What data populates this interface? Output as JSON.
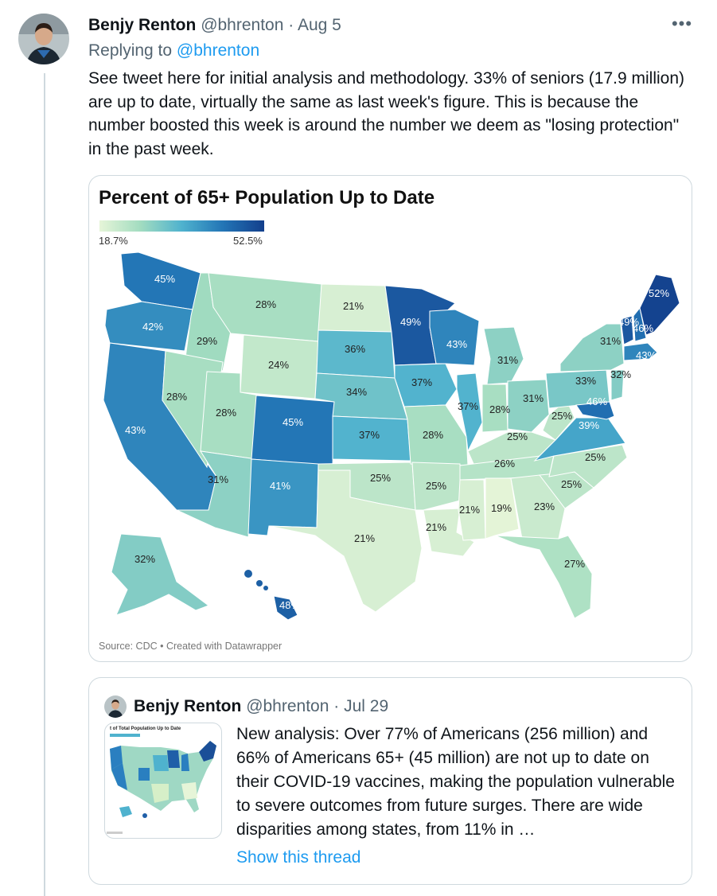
{
  "tweet": {
    "author_name": "Benjy Renton",
    "handle": "@bhrenton",
    "separator": "·",
    "date": "Aug 5",
    "more_icon": "more-horizontal-icon",
    "replying_prefix": "Replying to",
    "replying_handle": "@bhrenton",
    "text": "See tweet here for initial analysis and methodology. 33% of seniors (17.9 million) are up to date, virtually the same as last week's figure. This is because the number boosted this week is around the number we deem as \"losing protection\" in the past week."
  },
  "chart": {
    "title": "Percent of 65+ Population Up to Date",
    "legend_min": "18.7%",
    "legend_max": "52.5%",
    "source": "Source: CDC • Created with Datawrapper"
  },
  "chart_data": {
    "type": "table",
    "title": "Percent of 65+ Population Up to Date",
    "scale_min": 18.7,
    "scale_max": 52.5,
    "colors": {
      "low": "#e6f5d8",
      "high": "#133f8c"
    },
    "rows": [
      {
        "state": "WA",
        "value": 45
      },
      {
        "state": "OR",
        "value": 42
      },
      {
        "state": "CA",
        "value": 43
      },
      {
        "state": "ID",
        "value": 29
      },
      {
        "state": "NV",
        "value": 28
      },
      {
        "state": "MT",
        "value": 28
      },
      {
        "state": "WY",
        "value": 24
      },
      {
        "state": "UT",
        "value": 28
      },
      {
        "state": "AZ",
        "value": 31
      },
      {
        "state": "CO",
        "value": 45
      },
      {
        "state": "NM",
        "value": 41
      },
      {
        "state": "ND",
        "value": 21
      },
      {
        "state": "SD",
        "value": 36
      },
      {
        "state": "NE",
        "value": 34
      },
      {
        "state": "KS",
        "value": 37
      },
      {
        "state": "OK",
        "value": 25
      },
      {
        "state": "TX",
        "value": 21
      },
      {
        "state": "MN",
        "value": 49
      },
      {
        "state": "IA",
        "value": 37
      },
      {
        "state": "MO",
        "value": 28
      },
      {
        "state": "AR",
        "value": 25
      },
      {
        "state": "LA",
        "value": 21
      },
      {
        "state": "WI",
        "value": 43
      },
      {
        "state": "IL",
        "value": 37
      },
      {
        "state": "MI",
        "value": 31
      },
      {
        "state": "IN",
        "value": 28
      },
      {
        "state": "OH",
        "value": 31
      },
      {
        "state": "KY",
        "value": 25
      },
      {
        "state": "TN",
        "value": 26
      },
      {
        "state": "MS",
        "value": 21
      },
      {
        "state": "AL",
        "value": 19
      },
      {
        "state": "GA",
        "value": 23
      },
      {
        "state": "FL",
        "value": 27
      },
      {
        "state": "SC",
        "value": 25
      },
      {
        "state": "NC",
        "value": 25
      },
      {
        "state": "VA",
        "value": 39
      },
      {
        "state": "WV",
        "value": 25
      },
      {
        "state": "PA",
        "value": 33
      },
      {
        "state": "NY",
        "value": 31
      },
      {
        "state": "NJ",
        "value": 32
      },
      {
        "state": "MD",
        "value": 46
      },
      {
        "state": "VT",
        "value": 49
      },
      {
        "state": "NH",
        "value": 46
      },
      {
        "state": "ME",
        "value": 52
      },
      {
        "state": "MA",
        "value": 43
      },
      {
        "state": "AK",
        "value": 32
      },
      {
        "state": "HI",
        "value": 48
      }
    ]
  },
  "quote": {
    "author_name": "Benjy Renton",
    "handle": "@bhrenton",
    "separator": "·",
    "date": "Jul 29",
    "thumb_title": "t of Total Population Up to Date",
    "text": "New analysis: Over 77% of Americans (256 million) and 66% of Americans 65+ (45 million) are not up to date on their COVID-19 vaccines, making the population vulnerable to severe outcomes from future surges. There are wide disparities among states, from 11% in …",
    "show_thread": "Show this thread"
  }
}
